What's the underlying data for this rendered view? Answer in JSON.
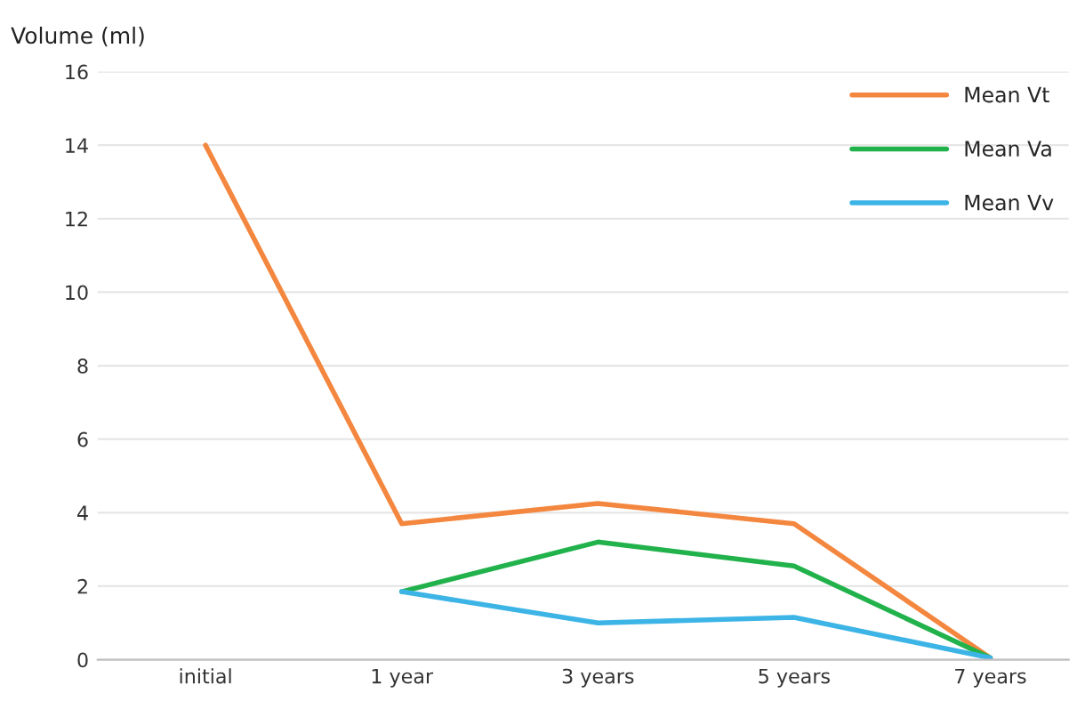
{
  "chart_data": {
    "type": "line",
    "ylabel": "Volume (ml)",
    "categories": [
      "initial",
      "1 year",
      "3 years",
      "5 years",
      "7 years"
    ],
    "series": [
      {
        "name": "Mean Vt",
        "color": "#f4873f",
        "values": [
          14,
          3.7,
          4.25,
          3.7,
          0.05
        ]
      },
      {
        "name": "Mean Va",
        "color": "#22b24c",
        "values": [
          null,
          1.85,
          3.2,
          2.55,
          0.05
        ]
      },
      {
        "name": "Mean Vv",
        "color": "#3cb4e6",
        "values": [
          null,
          1.85,
          1.0,
          1.15,
          0.05
        ]
      }
    ],
    "ylim": [
      0,
      16
    ],
    "yticks": [
      0,
      2,
      4,
      6,
      8,
      10,
      12,
      14,
      16
    ],
    "grid": "y",
    "legend": "top right",
    "marker": "none",
    "line_style": "solid"
  }
}
